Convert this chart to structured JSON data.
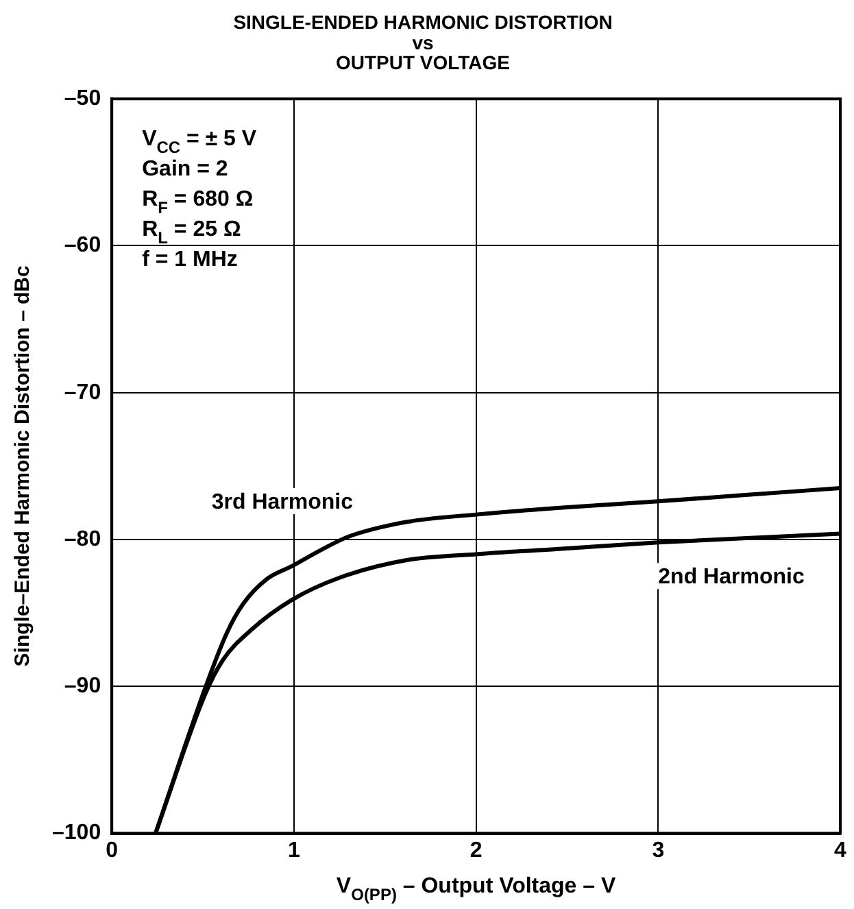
{
  "chart_data": {
    "type": "line",
    "title": "SINGLE-ENDED HARMONIC DISTORTION\nvs\nOUTPUT VOLTAGE",
    "xlabel": "V$_{O(PP)}$ – Output Voltage – V",
    "ylabel": "Single–Ended Harmonic Distortion – dBc",
    "series": [
      {
        "name": "3rd Harmonic",
        "color": "#000000",
        "x": [
          0.24,
          0.51,
          0.63,
          0.72,
          0.85,
          0.99,
          1.15,
          1.3,
          1.62,
          2.0,
          2.5,
          3.0,
          3.44,
          4.0
        ],
        "values": [
          -100,
          -90.2,
          -86.4,
          -84.4,
          -82.7,
          -81.8,
          -80.7,
          -79.8,
          -78.8,
          -78.3,
          -77.8,
          -77.4,
          -77.0,
          -76.5
        ]
      },
      {
        "name": "2nd Harmonic",
        "color": "#000000",
        "x": [
          0.24,
          0.51,
          0.61,
          0.77,
          0.99,
          1.25,
          1.62,
          2.0,
          2.5,
          3.0,
          4.0
        ],
        "values": [
          -100,
          -90.6,
          -88.2,
          -86.1,
          -84.1,
          -82.6,
          -81.4,
          -81.0,
          -80.6,
          -80.2,
          -79.6
        ]
      }
    ],
    "annotations": [
      "V$_{CC}$ = ± 5 V\nGain = 2\nR$_{F}$ = 680 Ω\nR$_{L}$ = 25 Ω\nf = 1 MHz"
    ],
    "xlim": [
      0,
      4
    ],
    "xticks": [
      0,
      1,
      2,
      3,
      4
    ],
    "ylim": [
      -100,
      -50
    ],
    "yticks": [
      {
        "value": -100,
        "label": "–100"
      },
      {
        "value": -90,
        "label": "–90"
      },
      {
        "value": -80,
        "label": "–80"
      },
      {
        "value": -70,
        "label": "–70"
      },
      {
        "value": -60,
        "label": "–60"
      },
      {
        "value": -50,
        "label": "–50"
      }
    ],
    "grid": true,
    "legend": false,
    "marker": "none",
    "line_style": "solid"
  }
}
